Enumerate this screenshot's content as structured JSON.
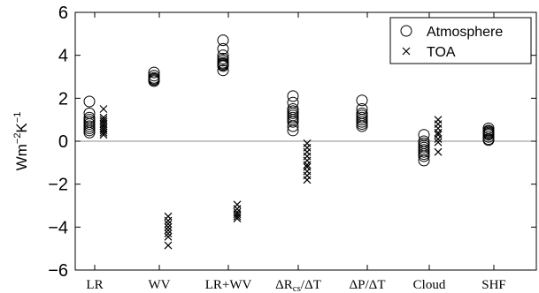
{
  "chart_data": {
    "type": "scatter",
    "title": "",
    "xlabel": "",
    "ylabel_main": "Wm",
    "ylabel_sup1": "−2",
    "ylabel_mid": "K",
    "ylabel_sup2": "−1",
    "ylim": [
      -6,
      6
    ],
    "yticks": [
      -6,
      -4,
      -2,
      0,
      2,
      4,
      6
    ],
    "ytick_labels": [
      "−6",
      "−4",
      "−2",
      "0",
      "2",
      "4",
      "6"
    ],
    "zero_line": true,
    "grid": false,
    "legend_position": "top-right",
    "categories": [
      {
        "id": "LR",
        "label": "LR"
      },
      {
        "id": "WV",
        "label": "WV"
      },
      {
        "id": "LRWV",
        "label": "LR+WV"
      },
      {
        "id": "dRcs",
        "label": "ΔRcs/ΔT",
        "main": "ΔR",
        "sub": "cs",
        "tail": "/ΔT"
      },
      {
        "id": "dP",
        "label": "ΔP/ΔT"
      },
      {
        "id": "Cloud",
        "label": "Cloud"
      },
      {
        "id": "SHF",
        "label": "SHF"
      }
    ],
    "series": [
      {
        "name": "Atmosphere",
        "marker": "circle",
        "values": {
          "LR": [
            1.85,
            1.3,
            1.1,
            1.0,
            0.9,
            0.8,
            0.7,
            0.6,
            0.5,
            0.4
          ],
          "WV": [
            3.2,
            3.05,
            2.95,
            2.9,
            2.85,
            2.8
          ],
          "LRWV": [
            4.7,
            4.3,
            4.0,
            3.85,
            3.75,
            3.65,
            3.6,
            3.55,
            3.5,
            3.3
          ],
          "dRcs": [
            2.1,
            1.8,
            1.5,
            1.4,
            1.3,
            1.2,
            1.1,
            1.0,
            0.9,
            0.7,
            0.5
          ],
          "dP": [
            1.9,
            1.5,
            1.3,
            1.2,
            1.1,
            1.0,
            0.9,
            0.8,
            0.7
          ],
          "Cloud": [
            0.3,
            0.0,
            -0.1,
            -0.2,
            -0.3,
            -0.4,
            -0.5,
            -0.6,
            -0.7,
            -0.9
          ],
          "SHF": [
            0.6,
            0.5,
            0.45,
            0.4,
            0.35,
            0.3,
            0.2,
            0.1,
            0.05
          ]
        }
      },
      {
        "name": "TOA",
        "marker": "x",
        "values": {
          "LR": [
            1.5,
            1.1,
            1.0,
            0.9,
            0.8,
            0.7,
            0.6,
            0.5,
            0.4,
            0.3
          ],
          "WV": [
            -3.5,
            -3.7,
            -3.85,
            -4.0,
            -4.15,
            -4.3,
            -4.45,
            -4.85
          ],
          "LRWV": [
            -2.95,
            -3.15,
            -3.3,
            -3.4,
            -3.5,
            -3.6
          ],
          "dRcs": [
            -0.1,
            -0.3,
            -0.5,
            -0.7,
            -0.9,
            -1.1,
            -1.2,
            -1.4,
            -1.6,
            -1.8
          ],
          "dP": [],
          "Cloud": [
            1.0,
            0.8,
            0.6,
            0.4,
            0.3,
            0.1,
            -0.05,
            -0.5
          ],
          "SHF": []
        }
      }
    ]
  }
}
